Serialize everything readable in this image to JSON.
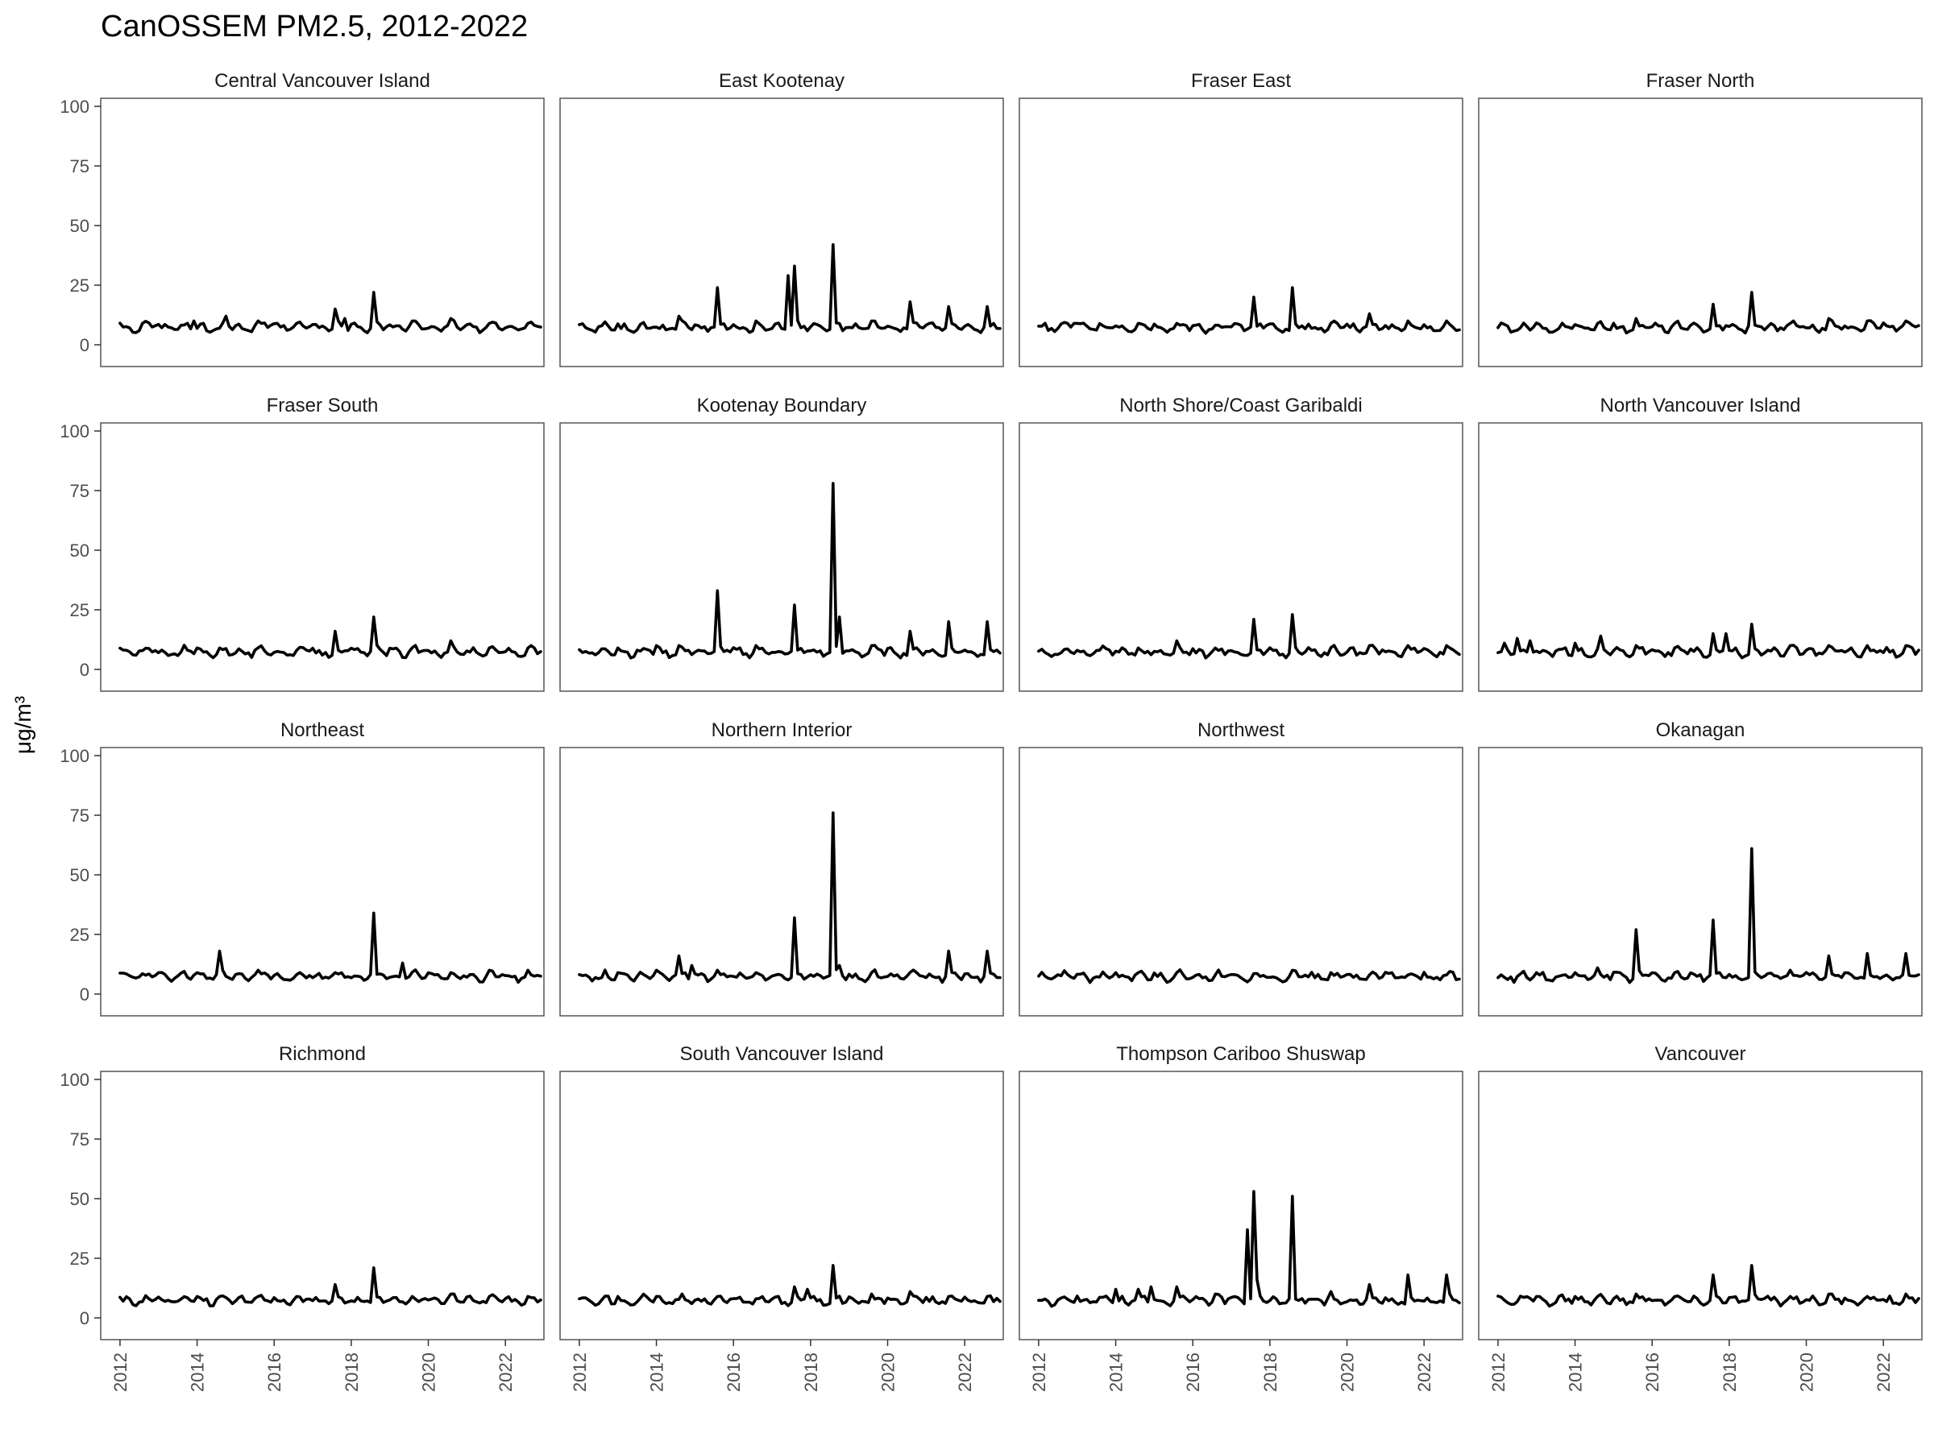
{
  "chart_data": {
    "type": "line",
    "title": "CanOSSEM PM2.5, 2012-2022",
    "ylabel": "μg/m³",
    "xlabel": "",
    "ylim": [
      0,
      100
    ],
    "yticks": [
      0,
      25,
      50,
      75,
      100
    ],
    "xlim": [
      2011.5,
      2023.0
    ],
    "xticks": [
      2012,
      2014,
      2016,
      2018,
      2020,
      2022
    ],
    "grid": false,
    "legend": "none",
    "baseline": [
      8,
      8,
      8,
      7,
      6,
      6,
      7,
      8,
      9,
      8,
      7,
      7
    ],
    "panels": [
      {
        "name": "Central Vancouver Island",
        "peaks": [
          [
            2012.6,
            9
          ],
          [
            2013.9,
            10
          ],
          [
            2014.2,
            9
          ],
          [
            2014.75,
            12
          ],
          [
            2015.55,
            10
          ],
          [
            2016.1,
            9
          ],
          [
            2017.55,
            15
          ],
          [
            2017.85,
            11
          ],
          [
            2018.58,
            22
          ],
          [
            2019.6,
            10
          ],
          [
            2020.62,
            11
          ],
          [
            2021.6,
            9
          ],
          [
            2022.62,
            9
          ]
        ]
      },
      {
        "name": "East Kootenay",
        "peaks": [
          [
            2014.62,
            12
          ],
          [
            2015.55,
            24
          ],
          [
            2016.6,
            10
          ],
          [
            2017.45,
            29
          ],
          [
            2017.6,
            33
          ],
          [
            2018.58,
            42
          ],
          [
            2019.6,
            10
          ],
          [
            2020.6,
            18
          ],
          [
            2021.6,
            16
          ],
          [
            2022.6,
            16
          ]
        ]
      },
      {
        "name": "Fraser East",
        "peaks": [
          [
            2012.9,
            9
          ],
          [
            2014.6,
            9
          ],
          [
            2015.6,
            9
          ],
          [
            2016.6,
            8
          ],
          [
            2017.55,
            20
          ],
          [
            2018.58,
            24
          ],
          [
            2019.6,
            8
          ],
          [
            2020.6,
            13
          ],
          [
            2021.6,
            10
          ],
          [
            2022.6,
            10
          ]
        ]
      },
      {
        "name": "Fraser North",
        "peaks": [
          [
            2013.0,
            8
          ],
          [
            2014.6,
            9
          ],
          [
            2015.6,
            11
          ],
          [
            2016.6,
            8
          ],
          [
            2017.55,
            17
          ],
          [
            2018.58,
            22
          ],
          [
            2019.6,
            9
          ],
          [
            2020.6,
            11
          ],
          [
            2021.6,
            10
          ],
          [
            2022.6,
            10
          ]
        ]
      },
      {
        "name": "Fraser South",
        "peaks": [
          [
            2014.0,
            9
          ],
          [
            2014.6,
            9
          ],
          [
            2015.6,
            9
          ],
          [
            2016.6,
            8
          ],
          [
            2017.55,
            16
          ],
          [
            2018.58,
            22
          ],
          [
            2019.6,
            9
          ],
          [
            2020.6,
            12
          ],
          [
            2021.6,
            9
          ],
          [
            2022.6,
            9
          ]
        ]
      },
      {
        "name": "Kootenay Boundary",
        "peaks": [
          [
            2013.0,
            9
          ],
          [
            2014.0,
            10
          ],
          [
            2014.6,
            10
          ],
          [
            2015.55,
            33
          ],
          [
            2016.6,
            10
          ],
          [
            2017.55,
            27
          ],
          [
            2018.58,
            78
          ],
          [
            2018.75,
            22
          ],
          [
            2019.6,
            10
          ],
          [
            2020.6,
            16
          ],
          [
            2021.6,
            20
          ],
          [
            2022.6,
            20
          ]
        ]
      },
      {
        "name": "North Shore/Coast Garibaldi",
        "peaks": [
          [
            2013.0,
            8
          ],
          [
            2014.6,
            9
          ],
          [
            2015.6,
            12
          ],
          [
            2016.6,
            8
          ],
          [
            2017.55,
            21
          ],
          [
            2018.58,
            23
          ],
          [
            2019.6,
            9
          ],
          [
            2020.6,
            10
          ],
          [
            2021.6,
            10
          ],
          [
            2022.6,
            10
          ]
        ]
      },
      {
        "name": "North Vancouver Island",
        "peaks": [
          [
            2012.2,
            11
          ],
          [
            2012.5,
            13
          ],
          [
            2012.8,
            12
          ],
          [
            2014.0,
            11
          ],
          [
            2014.7,
            14
          ],
          [
            2015.6,
            10
          ],
          [
            2016.6,
            9
          ],
          [
            2017.55,
            15
          ],
          [
            2017.9,
            15
          ],
          [
            2018.58,
            19
          ],
          [
            2019.6,
            10
          ],
          [
            2020.6,
            10
          ],
          [
            2021.6,
            10
          ],
          [
            2022.6,
            10
          ]
        ]
      },
      {
        "name": "Northeast",
        "peaks": [
          [
            2013.0,
            9
          ],
          [
            2014.0,
            9
          ],
          [
            2014.6,
            18
          ],
          [
            2015.55,
            10
          ],
          [
            2016.6,
            8
          ],
          [
            2017.55,
            9
          ],
          [
            2018.58,
            34
          ],
          [
            2019.3,
            13
          ],
          [
            2020.6,
            9
          ],
          [
            2021.6,
            10
          ],
          [
            2022.6,
            10
          ]
        ]
      },
      {
        "name": "Northern Interior",
        "peaks": [
          [
            2013.0,
            9
          ],
          [
            2014.0,
            10
          ],
          [
            2014.55,
            16
          ],
          [
            2014.9,
            12
          ],
          [
            2015.6,
            10
          ],
          [
            2016.6,
            9
          ],
          [
            2017.55,
            32
          ],
          [
            2018.58,
            76
          ],
          [
            2018.75,
            12
          ],
          [
            2019.6,
            9
          ],
          [
            2020.6,
            9
          ],
          [
            2021.6,
            18
          ],
          [
            2022.6,
            18
          ]
        ]
      },
      {
        "name": "Northwest",
        "peaks": [
          [
            2014.0,
            9
          ],
          [
            2014.6,
            9
          ],
          [
            2015.6,
            8
          ],
          [
            2016.6,
            8
          ],
          [
            2017.6,
            8
          ],
          [
            2018.58,
            10
          ],
          [
            2019.6,
            9
          ],
          [
            2020.6,
            8
          ],
          [
            2021.6,
            8
          ],
          [
            2022.6,
            8
          ]
        ]
      },
      {
        "name": "Okanagan",
        "peaks": [
          [
            2013.0,
            9
          ],
          [
            2014.0,
            9
          ],
          [
            2014.6,
            11
          ],
          [
            2015.55,
            27
          ],
          [
            2016.6,
            9
          ],
          [
            2017.55,
            31
          ],
          [
            2018.58,
            61
          ],
          [
            2019.6,
            10
          ],
          [
            2020.6,
            16
          ],
          [
            2021.6,
            17
          ],
          [
            2022.6,
            17
          ]
        ]
      },
      {
        "name": "Richmond",
        "peaks": [
          [
            2013.0,
            8
          ],
          [
            2014.0,
            9
          ],
          [
            2014.6,
            9
          ],
          [
            2015.6,
            9
          ],
          [
            2016.6,
            8
          ],
          [
            2017.55,
            14
          ],
          [
            2018.58,
            21
          ],
          [
            2019.6,
            9
          ],
          [
            2020.6,
            10
          ],
          [
            2021.6,
            9
          ],
          [
            2022.6,
            9
          ]
        ]
      },
      {
        "name": "South Vancouver Island",
        "peaks": [
          [
            2013.0,
            9
          ],
          [
            2014.0,
            9
          ],
          [
            2014.7,
            10
          ],
          [
            2015.6,
            9
          ],
          [
            2016.6,
            8
          ],
          [
            2017.55,
            13
          ],
          [
            2017.9,
            12
          ],
          [
            2018.58,
            22
          ],
          [
            2019.6,
            10
          ],
          [
            2020.6,
            11
          ],
          [
            2021.6,
            9
          ],
          [
            2022.6,
            9
          ]
        ]
      },
      {
        "name": "Thompson Cariboo Shuswap",
        "peaks": [
          [
            2014.0,
            12
          ],
          [
            2014.6,
            12
          ],
          [
            2014.9,
            13
          ],
          [
            2015.6,
            13
          ],
          [
            2016.6,
            10
          ],
          [
            2017.45,
            37
          ],
          [
            2017.55,
            53
          ],
          [
            2017.7,
            16
          ],
          [
            2018.58,
            51
          ],
          [
            2019.6,
            11
          ],
          [
            2020.6,
            14
          ],
          [
            2021.6,
            18
          ],
          [
            2022.6,
            18
          ]
        ]
      },
      {
        "name": "Vancouver",
        "peaks": [
          [
            2013.0,
            9
          ],
          [
            2014.0,
            9
          ],
          [
            2014.6,
            9
          ],
          [
            2015.6,
            10
          ],
          [
            2016.6,
            8
          ],
          [
            2017.55,
            18
          ],
          [
            2018.58,
            22
          ],
          [
            2019.6,
            9
          ],
          [
            2020.6,
            10
          ],
          [
            2021.6,
            9
          ],
          [
            2022.6,
            10
          ]
        ]
      }
    ]
  }
}
